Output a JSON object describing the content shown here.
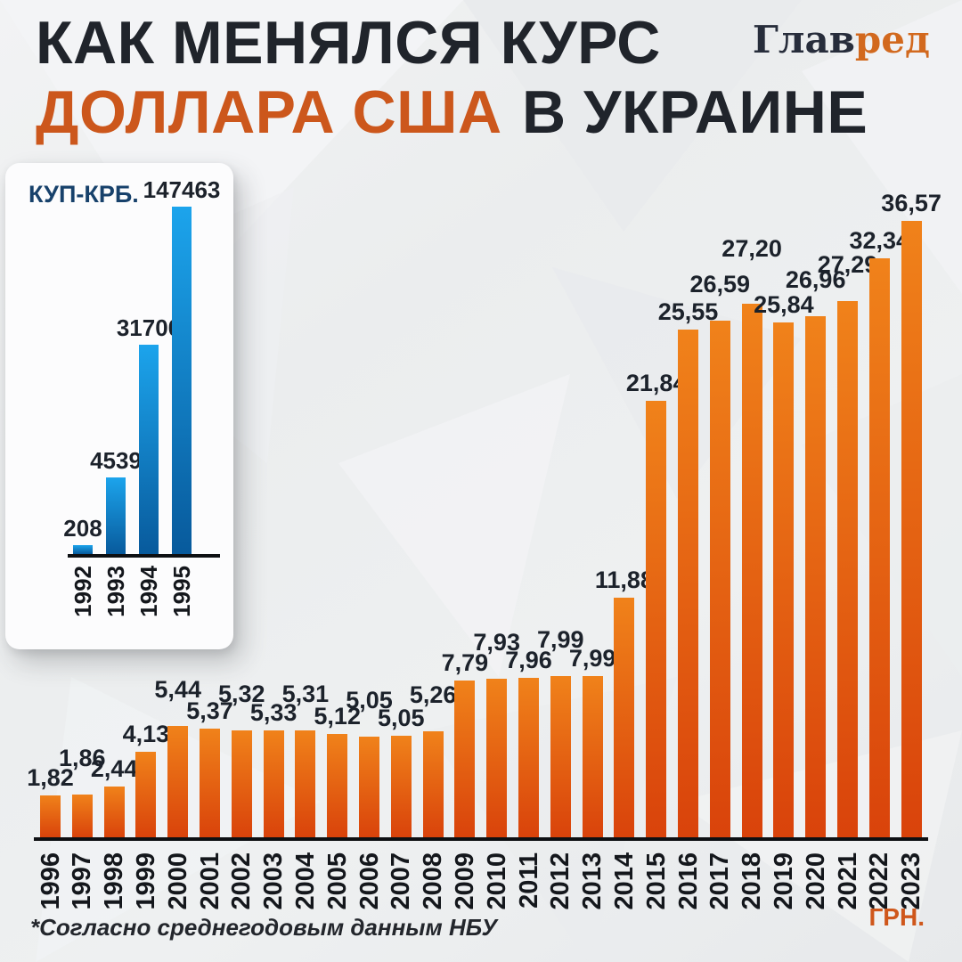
{
  "header": {
    "title_line1": "КАК МЕНЯЛСЯ КУРС",
    "title_accent": "ДОЛЛАРА США",
    "title_rest": "В УКРАИНЕ",
    "logo_primary": "Глав",
    "logo_accent": "ред"
  },
  "footnote": "*Согласно среднегодовым данным НБУ",
  "colors": {
    "background": "#edeff0",
    "title_dark": "#20242b",
    "accent_orange": "#cc571c",
    "logo_navy": "#272d3b",
    "logo_orange": "#d2691e",
    "axis_black": "#0e1013",
    "label_dark": "#1c222b",
    "inset_title_navy": "#17416b",
    "card_white": "#fcfcfd"
  },
  "chart_data": [
    {
      "id": "inset",
      "type": "bar",
      "title": "КУП-КРБ.",
      "categories": [
        "1992",
        "1993",
        "1994",
        "1995"
      ],
      "values": [
        208,
        4539,
        31700,
        147463
      ],
      "value_labels": [
        "208",
        "4539",
        "31700",
        "147463"
      ],
      "display_heights_pct": [
        2.6,
        22.1,
        60.3,
        100
      ],
      "label_stagger": [
        0,
        0,
        0,
        0
      ],
      "bar_gradient": [
        "#085a9c",
        "#1ca4ec"
      ],
      "grid": false,
      "legend": false,
      "value_labels_on_bars": true
    },
    {
      "id": "main",
      "type": "bar",
      "unit_label": "ГРН.",
      "categories": [
        "1996",
        "1997",
        "1998",
        "1999",
        "2000",
        "2001",
        "2002",
        "2003",
        "2004",
        "2005",
        "2006",
        "2007",
        "2008",
        "2009",
        "2010",
        "2011",
        "2012",
        "2013",
        "2014",
        "2015",
        "2016",
        "2017",
        "2018",
        "2019",
        "2020",
        "2021",
        "2022",
        "2023"
      ],
      "values": [
        1.82,
        1.86,
        2.44,
        4.13,
        5.44,
        5.37,
        5.32,
        5.33,
        5.31,
        5.12,
        5.05,
        5.05,
        5.26,
        7.79,
        7.93,
        7.96,
        7.99,
        7.99,
        11.88,
        21.84,
        25.55,
        26.59,
        27.2,
        25.84,
        26.96,
        27.29,
        32.34,
        36.57
      ],
      "value_labels": [
        "1,82",
        "1,86",
        "2,44",
        "4,13",
        "5,44",
        "5,37",
        "5,32",
        "5,33",
        "5,31",
        "5,12",
        "5,05",
        "5,05",
        "5,26",
        "7,79",
        "7,93",
        "7,96",
        "7,99",
        "7,99",
        "11,88",
        "21,84",
        "25,55",
        "26,59",
        "27,20",
        "25,84",
        "26,96",
        "27,29",
        "32,34",
        "36,57"
      ],
      "display_heights_pct": [
        6.8,
        6.9,
        8.2,
        13.9,
        18.1,
        17.6,
        17.3,
        17.3,
        17.3,
        16.8,
        16.3,
        16.5,
        17.2,
        25.4,
        25.7,
        25.9,
        26.2,
        26.2,
        38.9,
        70.8,
        82.4,
        83.8,
        86.6,
        83.5,
        84.5,
        87.0,
        93.9,
        100
      ],
      "label_stagger": [
        0,
        1,
        0,
        0,
        1,
        0,
        1,
        0,
        1,
        0,
        1,
        0,
        1,
        0,
        1,
        0,
        1,
        0,
        0,
        0,
        0,
        1,
        2,
        0,
        1,
        1,
        0,
        0
      ],
      "bar_gradient": [
        "#d9430b",
        "#f0821a"
      ],
      "ylim": [
        0,
        38
      ],
      "grid": false,
      "legend": false,
      "value_labels_on_bars": true
    }
  ]
}
